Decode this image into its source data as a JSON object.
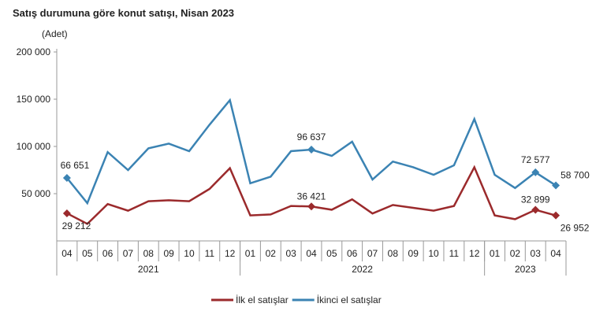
{
  "chart_data": {
    "type": "line",
    "title": "Satış durumuna göre konut satışı, Nisan 2023",
    "ylabel": "(Adet)",
    "ylim": [
      0,
      200000
    ],
    "yticks": [
      "200 000",
      "150 000",
      "100 000",
      "50 000"
    ],
    "ytick_values": [
      200000,
      150000,
      100000,
      50000
    ],
    "categories": [
      "04",
      "05",
      "06",
      "07",
      "08",
      "09",
      "10",
      "11",
      "12",
      "01",
      "02",
      "03",
      "04",
      "05",
      "06",
      "07",
      "08",
      "09",
      "10",
      "11",
      "12",
      "01",
      "02",
      "03",
      "04"
    ],
    "year_groups": [
      {
        "label": "2021",
        "count": 9
      },
      {
        "label": "2022",
        "count": 12
      },
      {
        "label": "2023",
        "count": 4
      }
    ],
    "grid": false,
    "legend_placement": "bottom",
    "series": [
      {
        "name": "İlk el satışlar",
        "color": "#9b2a2c",
        "values": [
          29212,
          18000,
          39000,
          32000,
          42000,
          43000,
          42000,
          55000,
          77000,
          27000,
          28000,
          37000,
          36421,
          33000,
          44000,
          29000,
          38000,
          35000,
          32000,
          37000,
          78000,
          27000,
          23000,
          32899,
          26952
        ],
        "labels": {
          "0": "29 212",
          "12": "36 421",
          "23": "32 899",
          "24": "26 952"
        }
      },
      {
        "name": "İkinci el satışlar",
        "color": "#3b83b3",
        "values": [
          66651,
          40000,
          94000,
          75000,
          98000,
          103000,
          95000,
          123000,
          149000,
          61000,
          68000,
          95000,
          96637,
          90000,
          105000,
          65000,
          84000,
          78000,
          70000,
          80000,
          129000,
          70000,
          56000,
          72577,
          58700
        ],
        "labels": {
          "0": "66 651",
          "12": "96 637",
          "23": "72 577",
          "24": "58 700"
        }
      }
    ]
  }
}
